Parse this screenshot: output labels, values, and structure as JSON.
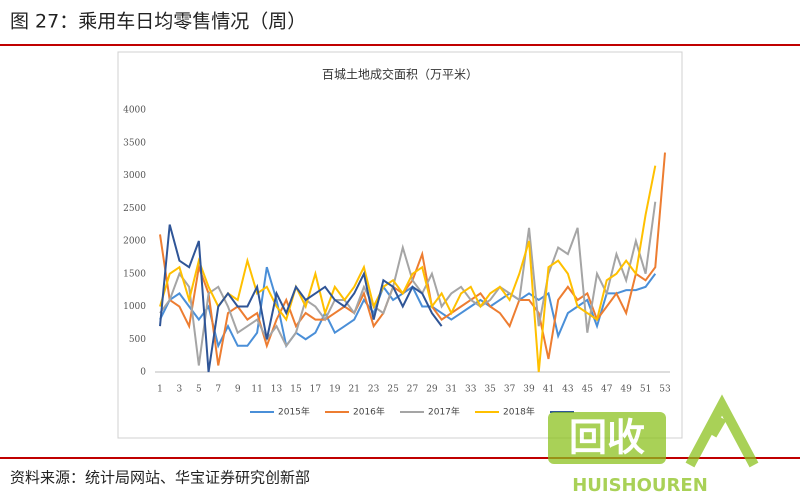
{
  "header": {
    "title": "图 27：乘用车日均零售情况（周）"
  },
  "chart_data": {
    "type": "line",
    "title": "百城土地成交面积（万平米）",
    "x": [
      1,
      2,
      3,
      4,
      5,
      6,
      7,
      8,
      9,
      10,
      11,
      12,
      13,
      14,
      15,
      16,
      17,
      18,
      19,
      20,
      21,
      22,
      23,
      24,
      25,
      26,
      27,
      28,
      29,
      30,
      31,
      32,
      33,
      34,
      35,
      36,
      37,
      38,
      39,
      40,
      41,
      42,
      43,
      44,
      45,
      46,
      47,
      48,
      49,
      50,
      51,
      52,
      53
    ],
    "xlim": [
      1,
      53
    ],
    "xticks": [
      1,
      3,
      5,
      7,
      9,
      11,
      13,
      15,
      17,
      19,
      21,
      23,
      25,
      27,
      29,
      31,
      33,
      35,
      37,
      39,
      41,
      43,
      45,
      47,
      49,
      51,
      53
    ],
    "ylim": [
      0,
      4000
    ],
    "yticks": [
      0,
      500,
      1000,
      1500,
      2000,
      2500,
      3000,
      3500,
      4000
    ],
    "series": [
      {
        "name": "2015年",
        "color": "#4a8fd8",
        "values": [
          800,
          1100,
          1200,
          1000,
          800,
          1000,
          400,
          700,
          400,
          400,
          600,
          1600,
          1100,
          400,
          600,
          500,
          600,
          900,
          600,
          700,
          800,
          1100,
          900,
          1300,
          1100,
          1200,
          1300,
          1000,
          1000,
          900,
          800,
          900,
          1000,
          1100,
          1000,
          1100,
          1200,
          1100,
          1200,
          1100,
          1200,
          550,
          900,
          1000,
          1100,
          700,
          1200,
          1200,
          1250,
          1250,
          1300,
          1500,
          null
        ]
      },
      {
        "name": "2016年",
        "color": "#ed7d31",
        "values": [
          2100,
          1100,
          1000,
          700,
          1600,
          1200,
          100,
          900,
          1000,
          800,
          900,
          400,
          800,
          1100,
          700,
          900,
          800,
          800,
          900,
          1000,
          900,
          1200,
          700,
          900,
          1300,
          1200,
          1400,
          1800,
          1000,
          800,
          900,
          1000,
          1100,
          1200,
          1000,
          900,
          700,
          1100,
          1100,
          900,
          200,
          1100,
          1300,
          1100,
          1200,
          800,
          1000,
          1200,
          900,
          1500,
          1400,
          1600,
          3350
        ]
      },
      {
        "name": "2017年",
        "color": "#a5a5a5",
        "values": [
          900,
          1100,
          1500,
          1300,
          100,
          1200,
          1300,
          1000,
          600,
          700,
          800,
          500,
          700,
          400,
          600,
          1100,
          1000,
          800,
          1100,
          1100,
          900,
          1300,
          1000,
          900,
          1300,
          1900,
          1400,
          1200,
          1500,
          1000,
          1200,
          1300,
          1100,
          1000,
          1100,
          1300,
          1200,
          1100,
          2200,
          700,
          1500,
          1900,
          1800,
          2200,
          600,
          1500,
          1200,
          1800,
          1400,
          2000,
          1500,
          2600,
          null
        ]
      },
      {
        "name": "2018年",
        "color": "#ffc000",
        "values": [
          1000,
          1500,
          1600,
          1100,
          1700,
          1300,
          1000,
          1200,
          1100,
          1700,
          1200,
          1300,
          1000,
          800,
          1300,
          1000,
          1500,
          900,
          1300,
          1100,
          1300,
          1600,
          1000,
          1300,
          1400,
          1200,
          1500,
          1600,
          1000,
          1200,
          900,
          1200,
          1300,
          1000,
          1200,
          1300,
          1100,
          1500,
          2000,
          0,
          1600,
          1700,
          1500,
          1000,
          900,
          800,
          1400,
          1500,
          1700,
          1500,
          2400,
          3150,
          null
        ]
      },
      {
        "name": null,
        "color": "#2f5597",
        "values": [
          700,
          2250,
          1700,
          1600,
          2000,
          0,
          1000,
          1200,
          1000,
          1000,
          1300,
          500,
          1200,
          900,
          1300,
          1100,
          1200,
          1300,
          1100,
          1000,
          1200,
          1500,
          800,
          1400,
          1300,
          1000,
          1300,
          1200,
          900,
          700,
          null,
          null,
          null,
          null,
          null,
          null,
          null,
          null,
          null,
          null,
          null,
          null,
          null,
          null,
          null,
          null,
          null,
          null,
          null,
          null,
          null,
          null,
          null
        ]
      }
    ]
  },
  "source": "资料来源：统计局网站、华宝证券研究创新部",
  "watermark": {
    "mark": "回收",
    "text": "HUISHOUREN"
  }
}
